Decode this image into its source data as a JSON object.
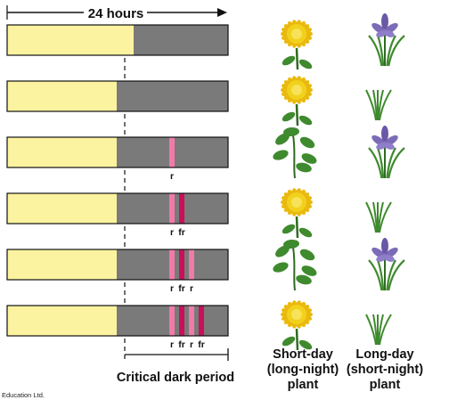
{
  "header": {
    "duration_label": "24 hours"
  },
  "rows": [
    {
      "flashes": [],
      "flash_label": "",
      "short_day_response": "flowering",
      "long_day_response": "flowering"
    },
    {
      "flashes": [],
      "flash_label": "",
      "short_day_response": "flowering",
      "long_day_response": "vegetative"
    },
    {
      "flashes": [
        "r"
      ],
      "flash_label": "r",
      "short_day_response": "vegetative",
      "long_day_response": "flowering"
    },
    {
      "flashes": [
        "r",
        "fr"
      ],
      "flash_label": "r  fr",
      "short_day_response": "flowering",
      "long_day_response": "vegetative"
    },
    {
      "flashes": [
        "r",
        "fr",
        "r"
      ],
      "flash_label": "r  fr  r",
      "short_day_response": "vegetative",
      "long_day_response": "flowering"
    },
    {
      "flashes": [
        "r",
        "fr",
        "r",
        "fr"
      ],
      "flash_label": "r  fr  r  fr",
      "short_day_response": "flowering",
      "long_day_response": "vegetative"
    }
  ],
  "labels": {
    "critical_dark_period": "Critical dark period",
    "short_day": [
      "Short-day",
      "(long-night)",
      "plant"
    ],
    "long_day": [
      "Long-day",
      "(short-night)",
      "plant"
    ],
    "credit": "Education Ltd."
  },
  "colors": {
    "light": "#fbf3a0",
    "dark": "#7a7a7a",
    "red_flash": "#f07aa8",
    "far_red_flash": "#c8105a",
    "chrysanthemum": "#f2d11c",
    "iris": "#7d6bb8",
    "leaf": "#3f8a2e"
  },
  "icons": {
    "short_day_flowering": "yellow-chrysanthemum-icon",
    "short_day_vegetative": "green-shoot-icon",
    "long_day_flowering": "purple-iris-icon",
    "long_day_vegetative": "grass-blades-icon"
  }
}
